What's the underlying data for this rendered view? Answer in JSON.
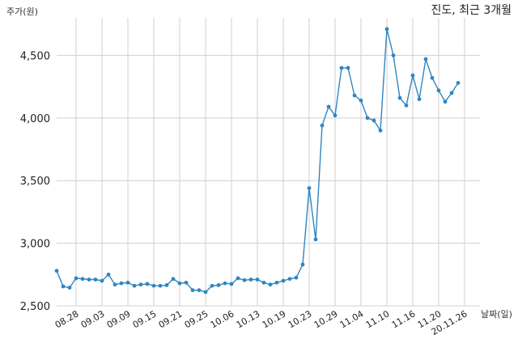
{
  "chart_data": {
    "type": "line",
    "title": "진도, 최근 3개월",
    "ylabel": "주가(원)",
    "xlabel": "날짜(일)",
    "ylim": [
      2500,
      4800
    ],
    "yticks": [
      2500,
      3000,
      3500,
      4000,
      4500
    ],
    "ytick_labels": [
      "2,500",
      "3,000",
      "3,500",
      "4,000",
      "4,500"
    ],
    "xtick_labels": [
      "08.28",
      "09.03",
      "09.09",
      "09.15",
      "09.21",
      "09.25",
      "10.06",
      "10.13",
      "10.19",
      "10.23",
      "10.29",
      "11.04",
      "11.10",
      "11.16",
      "11.20",
      "20.11.26"
    ],
    "xtick_index": [
      3,
      7,
      11,
      15,
      19,
      23,
      27,
      31,
      35,
      39,
      43,
      47,
      51,
      55,
      59,
      63
    ],
    "grid": true,
    "colors": {
      "line": "#2e86c1",
      "grid": "#d0d0d0"
    },
    "series": [
      {
        "values": [
          2780,
          2655,
          2645,
          2720,
          2715,
          2710,
          2710,
          2700,
          2750,
          2670,
          2680,
          2685,
          2660,
          2670,
          2675,
          2660,
          2660,
          2665,
          2715,
          2680,
          2685,
          2625,
          2625,
          2610,
          2660,
          2665,
          2680,
          2675,
          2720,
          2705,
          2710,
          2710,
          2685,
          2670,
          2685,
          2700,
          2715,
          2725,
          2830,
          3440,
          3030,
          3940,
          4090,
          4020,
          4400,
          4400,
          4180,
          4140,
          4000,
          3980,
          3900,
          4710,
          4500,
          4160,
          4100,
          4340,
          4150,
          4470,
          4320,
          4220,
          4130,
          4200,
          4280
        ]
      }
    ]
  }
}
